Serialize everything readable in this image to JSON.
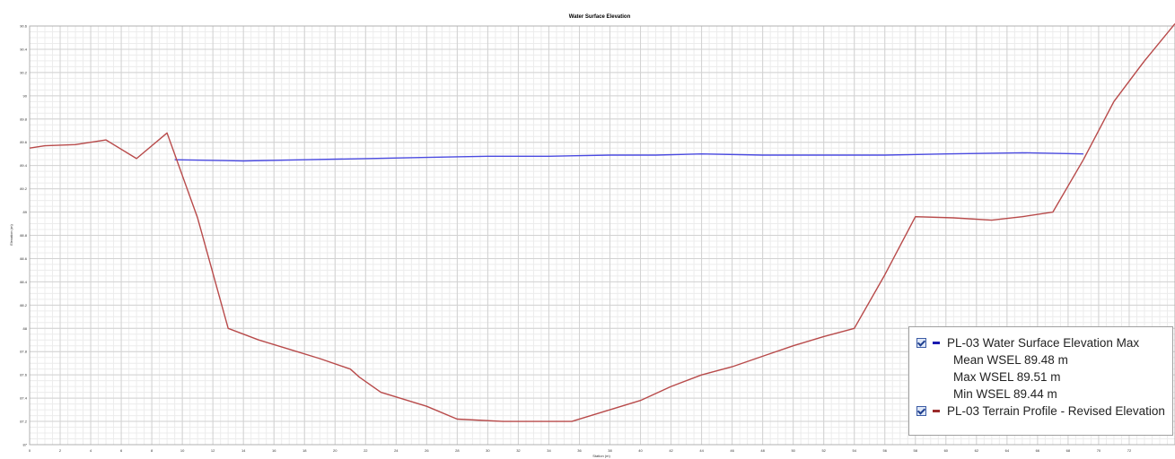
{
  "chart_data": {
    "type": "line",
    "title": "Water Surface Elevation",
    "xlabel": "Station (m)",
    "ylabel": "Elevation (m)",
    "xlim": [
      0,
      75
    ],
    "ylim": [
      87,
      90.6
    ],
    "x_ticks": [
      0,
      2,
      4,
      6,
      8,
      10,
      12,
      14,
      16,
      18,
      20,
      22,
      24,
      26,
      28,
      30,
      32,
      34,
      36,
      38,
      40,
      42,
      44,
      46,
      48,
      50,
      52,
      54,
      56,
      58,
      60,
      62,
      64,
      66,
      68,
      70,
      72
    ],
    "y_ticks": [
      87,
      87.2,
      87.4,
      87.6,
      87.8,
      88,
      88.2,
      88.4,
      88.6,
      88.8,
      89,
      89.2,
      89.4,
      89.6,
      89.8,
      90,
      90.2,
      90.4,
      90.6
    ],
    "grid": true,
    "legend_position": "bottom-right",
    "series": [
      {
        "name": "PL-03 Water Surface Elevation Max",
        "color": "#4a4ae0",
        "x": [
          9.5,
          14,
          18,
          22,
          26,
          30,
          34,
          38,
          41,
          44,
          48,
          52,
          56,
          60,
          65,
          69
        ],
        "y": [
          89.45,
          89.44,
          89.45,
          89.46,
          89.47,
          89.48,
          89.48,
          89.49,
          89.49,
          89.5,
          89.49,
          89.49,
          89.49,
          89.5,
          89.51,
          89.5
        ]
      },
      {
        "name": "PL-03 Terrain Profile - Revised Elevation",
        "color": "#b84a4a",
        "x": [
          0,
          1,
          3,
          5,
          7,
          9,
          11,
          13,
          15,
          17,
          19,
          21,
          21.6,
          23,
          26,
          28,
          31,
          33,
          35.5,
          38,
          40,
          42,
          44,
          46,
          48,
          50,
          52,
          54,
          56,
          58,
          60.5,
          63,
          65,
          67,
          69,
          71,
          73,
          75
        ],
        "y": [
          89.55,
          89.57,
          89.58,
          89.62,
          89.46,
          89.68,
          88.95,
          88.0,
          87.9,
          87.82,
          87.74,
          87.65,
          87.58,
          87.45,
          87.33,
          87.22,
          87.2,
          87.2,
          87.2,
          87.3,
          87.38,
          87.5,
          87.6,
          87.67,
          87.76,
          87.85,
          87.93,
          88.0,
          88.46,
          88.96,
          88.95,
          88.93,
          88.96,
          89.0,
          89.45,
          89.95,
          90.3,
          90.62
        ]
      }
    ],
    "legend": {
      "series1_label": "PL-03 Water Surface Elevation Max",
      "stats": [
        "Mean WSEL 89.48 m",
        "Max WSEL 89.51 m",
        "Min WSEL 89.44 m"
      ],
      "series2_label": "PL-03 Terrain Profile - Revised Elevation"
    }
  }
}
